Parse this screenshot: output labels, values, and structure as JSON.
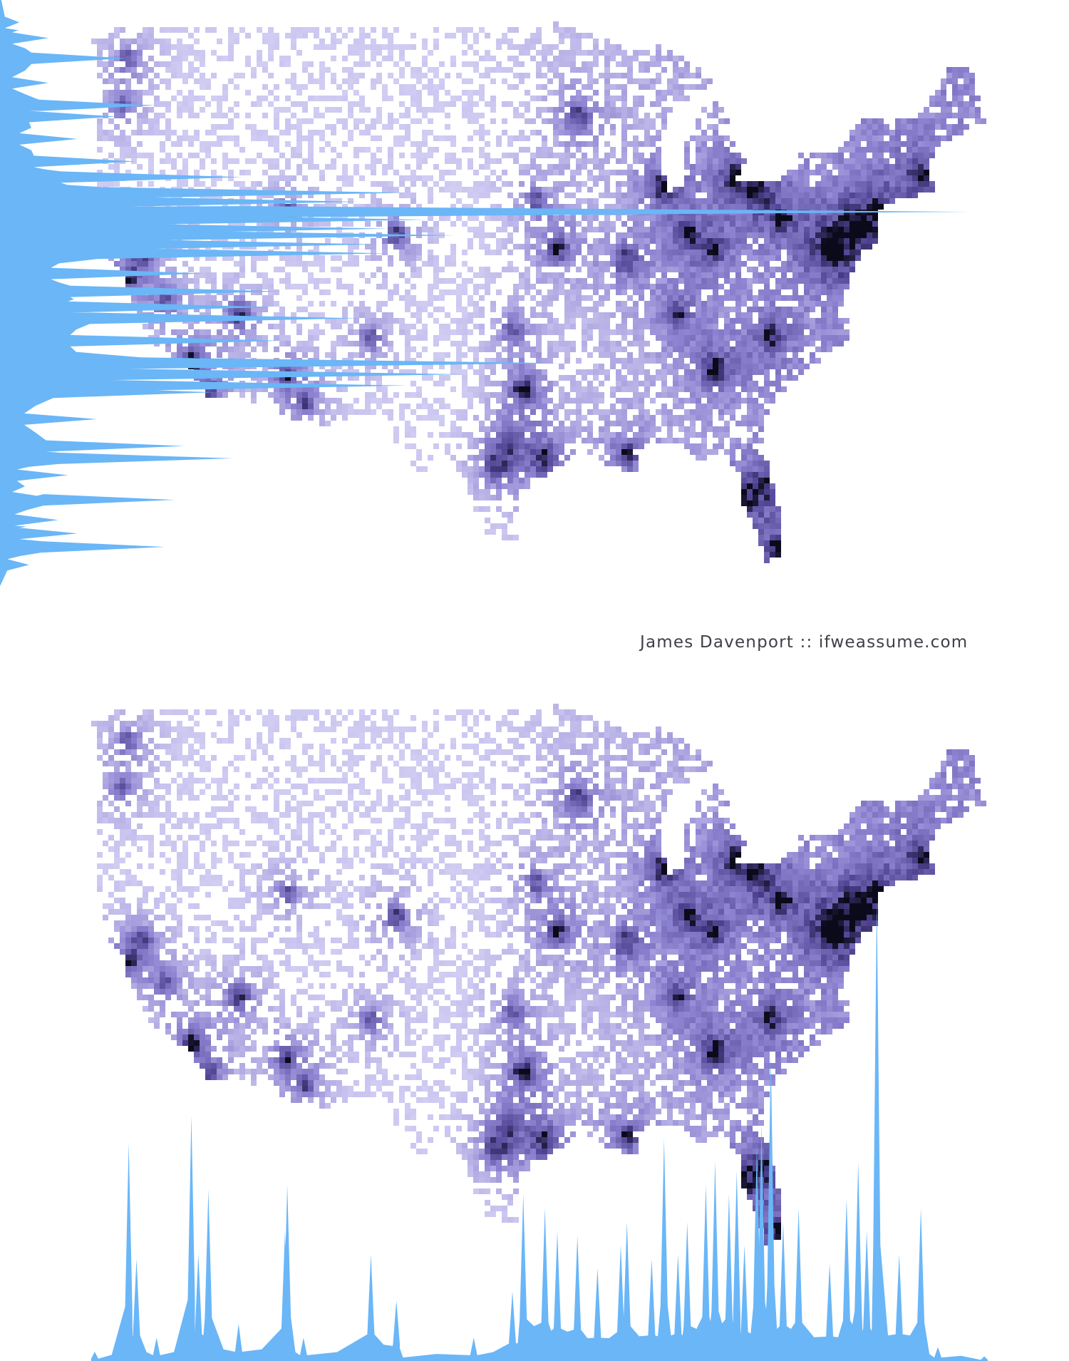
{
  "credit": "James Davenport :: ifweassume.com",
  "colors": {
    "background": "#ffffff",
    "density_light": "#d9d6f7",
    "density_mid": "#8c82d0",
    "density_dark": "#4e4290",
    "density_peak": "#0b0a1a",
    "histogram_fill": "#6ab6f7"
  },
  "chart_data": [
    {
      "type": "heatmap",
      "description_of_encoding": "2D density of geo-located points binned on a lon/lat grid; darker = more points",
      "x": {
        "name": "longitude",
        "range": [
          -125,
          -66.5
        ]
      },
      "y": {
        "name": "latitude",
        "range": [
          24.5,
          49.5
        ]
      },
      "hotspots": [
        {
          "lon": -122.3,
          "lat": 47.6,
          "level": 3
        },
        {
          "lon": -122.7,
          "lat": 45.5,
          "level": 3
        },
        {
          "lon": -112.0,
          "lat": 40.8,
          "level": 3
        },
        {
          "lon": -105.0,
          "lat": 39.7,
          "level": 4
        },
        {
          "lon": -93.3,
          "lat": 44.97,
          "level": 4
        },
        {
          "lon": -87.7,
          "lat": 41.9,
          "level": 5
        },
        {
          "lon": -83.0,
          "lat": 42.35,
          "level": 5
        },
        {
          "lon": -81.7,
          "lat": 41.5,
          "level": 4
        },
        {
          "lon": -80.0,
          "lat": 40.45,
          "level": 4
        },
        {
          "lon": -73.95,
          "lat": 40.75,
          "level": 5
        },
        {
          "lon": -75.15,
          "lat": 39.95,
          "level": 5
        },
        {
          "lon": -76.6,
          "lat": 39.3,
          "level": 4
        },
        {
          "lon": -77.0,
          "lat": 38.9,
          "level": 5
        },
        {
          "lon": -71.1,
          "lat": 42.35,
          "level": 4
        },
        {
          "lon": -94.6,
          "lat": 39.1,
          "level": 4
        },
        {
          "lon": -90.2,
          "lat": 38.6,
          "level": 4
        },
        {
          "lon": -86.2,
          "lat": 39.8,
          "level": 4
        },
        {
          "lon": -84.5,
          "lat": 39.1,
          "level": 4
        },
        {
          "lon": -96.8,
          "lat": 32.8,
          "level": 5
        },
        {
          "lon": -95.4,
          "lat": 29.75,
          "level": 5
        },
        {
          "lon": -98.5,
          "lat": 29.4,
          "level": 4
        },
        {
          "lon": -97.7,
          "lat": 30.3,
          "level": 4
        },
        {
          "lon": -90.1,
          "lat": 29.95,
          "level": 4
        },
        {
          "lon": -84.4,
          "lat": 33.75,
          "level": 5
        },
        {
          "lon": -80.8,
          "lat": 35.2,
          "level": 4
        },
        {
          "lon": -86.8,
          "lat": 36.15,
          "level": 4
        },
        {
          "lon": -81.4,
          "lat": 28.5,
          "level": 4
        },
        {
          "lon": -82.5,
          "lat": 27.95,
          "level": 4
        },
        {
          "lon": -80.2,
          "lat": 25.8,
          "level": 5
        },
        {
          "lon": -97.5,
          "lat": 35.5,
          "level": 3
        },
        {
          "lon": -96.0,
          "lat": 41.25,
          "level": 3
        },
        {
          "lon": -122.4,
          "lat": 37.75,
          "level": 4
        },
        {
          "lon": -121.5,
          "lat": 38.6,
          "level": 3
        },
        {
          "lon": -118.25,
          "lat": 34.05,
          "level": 5
        },
        {
          "lon": -117.15,
          "lat": 32.7,
          "level": 4
        },
        {
          "lon": -115.15,
          "lat": 36.15,
          "level": 4
        },
        {
          "lon": -112.05,
          "lat": 33.45,
          "level": 4
        },
        {
          "lon": -110.95,
          "lat": 32.2,
          "level": 3
        },
        {
          "lon": -106.65,
          "lat": 35.1,
          "level": 3
        },
        {
          "lon": -119.8,
          "lat": 36.75,
          "level": 3
        }
      ]
    },
    {
      "type": "area",
      "orientation": "horizontal",
      "description_of_encoding": "marginal count of points per latitude row (left edge)",
      "x": [
        49.2,
        48.5,
        47.6,
        46.5,
        45.5,
        45.0,
        44.0,
        43.0,
        42.3,
        41.6,
        41.2,
        40.75,
        40.4,
        40.0,
        39.7,
        39.3,
        38.9,
        38.0,
        37.2,
        36.5,
        36.0,
        35.0,
        34.0,
        33.5,
        33.0,
        32.7,
        31.5,
        30.3,
        29.75,
        29.0,
        28.0,
        27.9,
        27.0,
        26.4,
        25.8,
        25.0
      ],
      "values": [
        0.02,
        0.05,
        0.13,
        0.05,
        0.16,
        0.12,
        0.08,
        0.14,
        0.25,
        0.42,
        0.37,
        1.0,
        0.44,
        0.4,
        0.47,
        0.39,
        0.4,
        0.21,
        0.29,
        0.28,
        0.37,
        0.29,
        0.58,
        0.48,
        0.42,
        0.22,
        0.1,
        0.19,
        0.24,
        0.07,
        0.05,
        0.18,
        0.06,
        0.08,
        0.17,
        0.03
      ]
    },
    {
      "type": "area",
      "orientation": "vertical",
      "description_of_encoding": "marginal count of points per longitude column (bottom edge)",
      "x": [
        -124.5,
        -122.3,
        -121.8,
        -120.5,
        -118.25,
        -117.8,
        -117.15,
        -115.2,
        -112.2,
        -112.05,
        -111.0,
        -106.65,
        -105.0,
        -104.8,
        -100.0,
        -97.5,
        -96.8,
        -95.4,
        -94.6,
        -93.3,
        -92.0,
        -90.5,
        -90.1,
        -88.5,
        -87.7,
        -86.8,
        -86.2,
        -85.0,
        -84.4,
        -83.5,
        -83.0,
        -82.5,
        -81.7,
        -81.4,
        -80.8,
        -80.0,
        -79.0,
        -77.0,
        -75.9,
        -75.15,
        -74.6,
        -73.95,
        -72.5,
        -71.1,
        -70.0,
        -67.0
      ],
      "values": [
        0.02,
        0.47,
        0.22,
        0.05,
        0.53,
        0.23,
        0.37,
        0.08,
        0.28,
        0.38,
        0.05,
        0.23,
        0.13,
        0.03,
        0.05,
        0.15,
        0.36,
        0.33,
        0.28,
        0.27,
        0.2,
        0.25,
        0.3,
        0.22,
        0.48,
        0.23,
        0.3,
        0.38,
        0.43,
        0.36,
        0.41,
        0.25,
        0.47,
        0.51,
        0.66,
        0.3,
        0.33,
        0.21,
        0.35,
        0.43,
        0.28,
        1.0,
        0.23,
        0.33,
        0.03,
        0.01
      ]
    }
  ]
}
